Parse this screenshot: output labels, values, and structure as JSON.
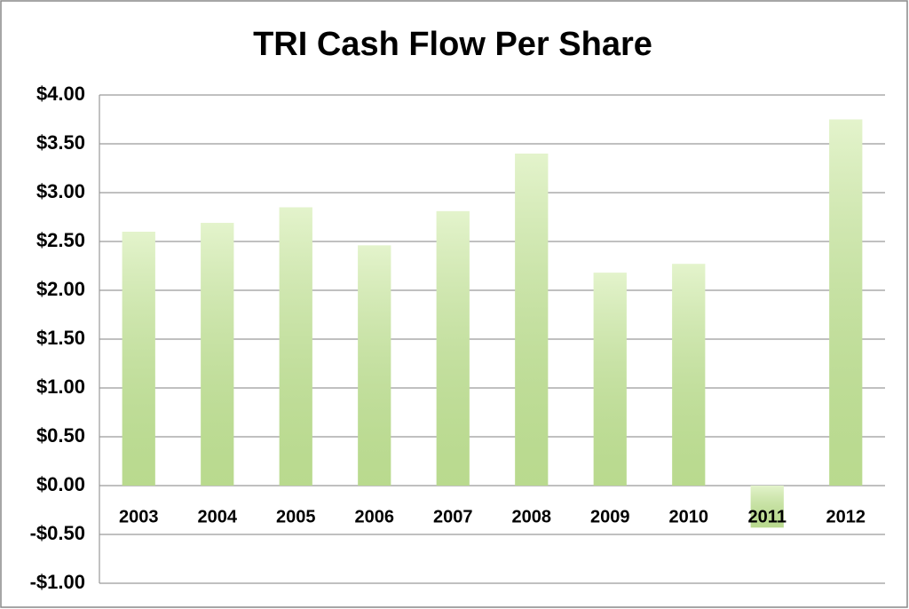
{
  "chart_data": {
    "type": "bar",
    "title": "TRI Cash Flow Per Share",
    "categories": [
      "2003",
      "2004",
      "2005",
      "2006",
      "2007",
      "2008",
      "2009",
      "2010",
      "2011",
      "2012"
    ],
    "values": [
      2.6,
      2.69,
      2.85,
      2.46,
      2.81,
      3.4,
      2.18,
      2.27,
      -0.43,
      3.75
    ],
    "color": "#cdeaa2",
    "ylim": [
      -1,
      4
    ],
    "yticks": [
      {
        "value": -1,
        "label": "-$1.00"
      },
      {
        "value": -0.5,
        "label": "-$0.50"
      },
      {
        "value": 0,
        "label": "$0.00"
      },
      {
        "value": 0.5,
        "label": "$0.50"
      },
      {
        "value": 1,
        "label": "$1.00"
      },
      {
        "value": 1.5,
        "label": "$1.50"
      },
      {
        "value": 2,
        "label": "$2.00"
      },
      {
        "value": 2.5,
        "label": "$2.50"
      },
      {
        "value": 3,
        "label": "$3.00"
      },
      {
        "value": 3.5,
        "label": "$3.50"
      },
      {
        "value": 4,
        "label": "$4.00"
      }
    ],
    "grid": true
  }
}
